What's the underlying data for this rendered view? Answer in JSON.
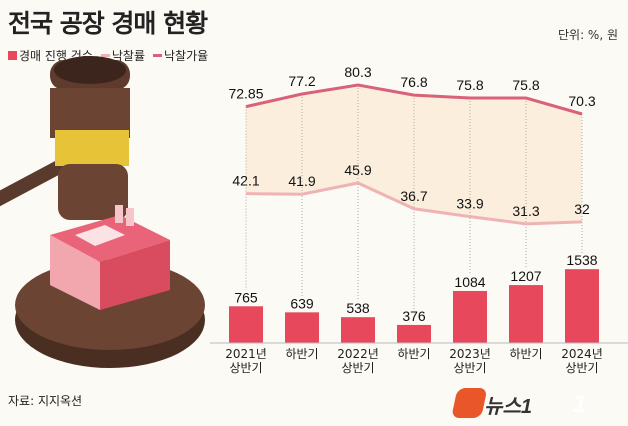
{
  "title": "전국 공장 경매 현황",
  "unit": "단위: %, 원",
  "source": "자료: 지지옥션",
  "logo": "뉴스1",
  "legend": [
    {
      "label": "경매 진행 건수",
      "color": "#e8485c"
    },
    {
      "label": "낙찰률",
      "color": "#efb3b5"
    },
    {
      "label": "낙찰가율",
      "color": "#d9627a"
    }
  ],
  "chart_data": {
    "type": "bar",
    "title": "전국 공장 경매 현황",
    "categories": [
      [
        "2021년",
        "상반기"
      ],
      [
        "하반기"
      ],
      [
        "2022년",
        "상반기"
      ],
      [
        "하반기"
      ],
      [
        "2023년",
        "상반기"
      ],
      [
        "하반기"
      ],
      [
        "2024년",
        "상반기"
      ]
    ],
    "series": [
      {
        "name": "경매 진행 건수",
        "type": "bar",
        "values": [
          765,
          639,
          538,
          376,
          1084,
          1207,
          1538
        ],
        "labels": [
          "765",
          "639",
          "538",
          "376",
          "1084",
          "1207",
          "1538"
        ],
        "color": "#e8485c"
      },
      {
        "name": "낙찰률",
        "type": "line",
        "values": [
          42.1,
          41.9,
          45.9,
          36.7,
          33.9,
          31.3,
          32
        ],
        "labels": [
          "42.1",
          "41.9",
          "45.9",
          "36.7",
          "33.9",
          "31.3",
          "32"
        ],
        "color": "#efb3b5"
      },
      {
        "name": "낙찰가율",
        "type": "line",
        "values": [
          72.85,
          77.2,
          80.3,
          76.8,
          75.8,
          75.8,
          70.3
        ],
        "labels": [
          "72.85",
          "77.2",
          "80.3",
          "76.8",
          "75.8",
          "75.8",
          "70.3"
        ],
        "color": "#d9627a"
      }
    ],
    "fill_between_lines": "#fbeedd",
    "grid": false
  }
}
